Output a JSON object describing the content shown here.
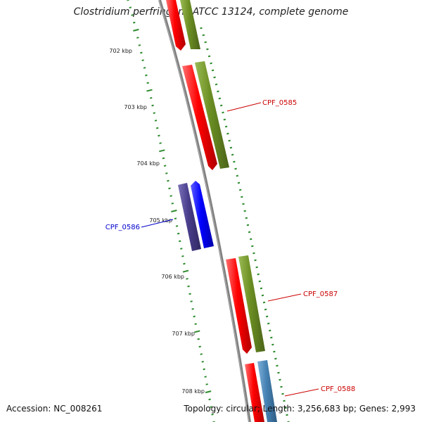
{
  "title": "Clostridium perfringens ATCC 13124, complete genome",
  "footer": {
    "accession": "Accession: NC_008261",
    "topology": "Topology: circular; Length: 3,256,683 bp; Genes: 2,993"
  },
  "colors": {
    "backbone": "#808080",
    "tick": "#2e8b2e",
    "cds_red": "#ff0000",
    "cds_olive": "#6b8e23",
    "cds_blue": "#0000ff",
    "cds_navy": "#483d8b",
    "cds_steel": "#4682b4",
    "label_red": "#cc0000",
    "label_blue": "#0000cc"
  },
  "scale_labels": [
    "702 kbp",
    "703 kbp",
    "704 kbp",
    "705 kbp",
    "706 kbp",
    "707 kbp",
    "708 kbp"
  ],
  "genes": [
    {
      "label": "CPF_0585",
      "strand": "forward",
      "color_key": "label_red"
    },
    {
      "label": "CPF_0586",
      "strand": "reverse",
      "color_key": "label_blue"
    },
    {
      "label": "CPF_0587",
      "strand": "forward",
      "color_key": "label_red"
    },
    {
      "label": "CPF_0588",
      "strand": "forward",
      "color_key": "label_red"
    }
  ]
}
